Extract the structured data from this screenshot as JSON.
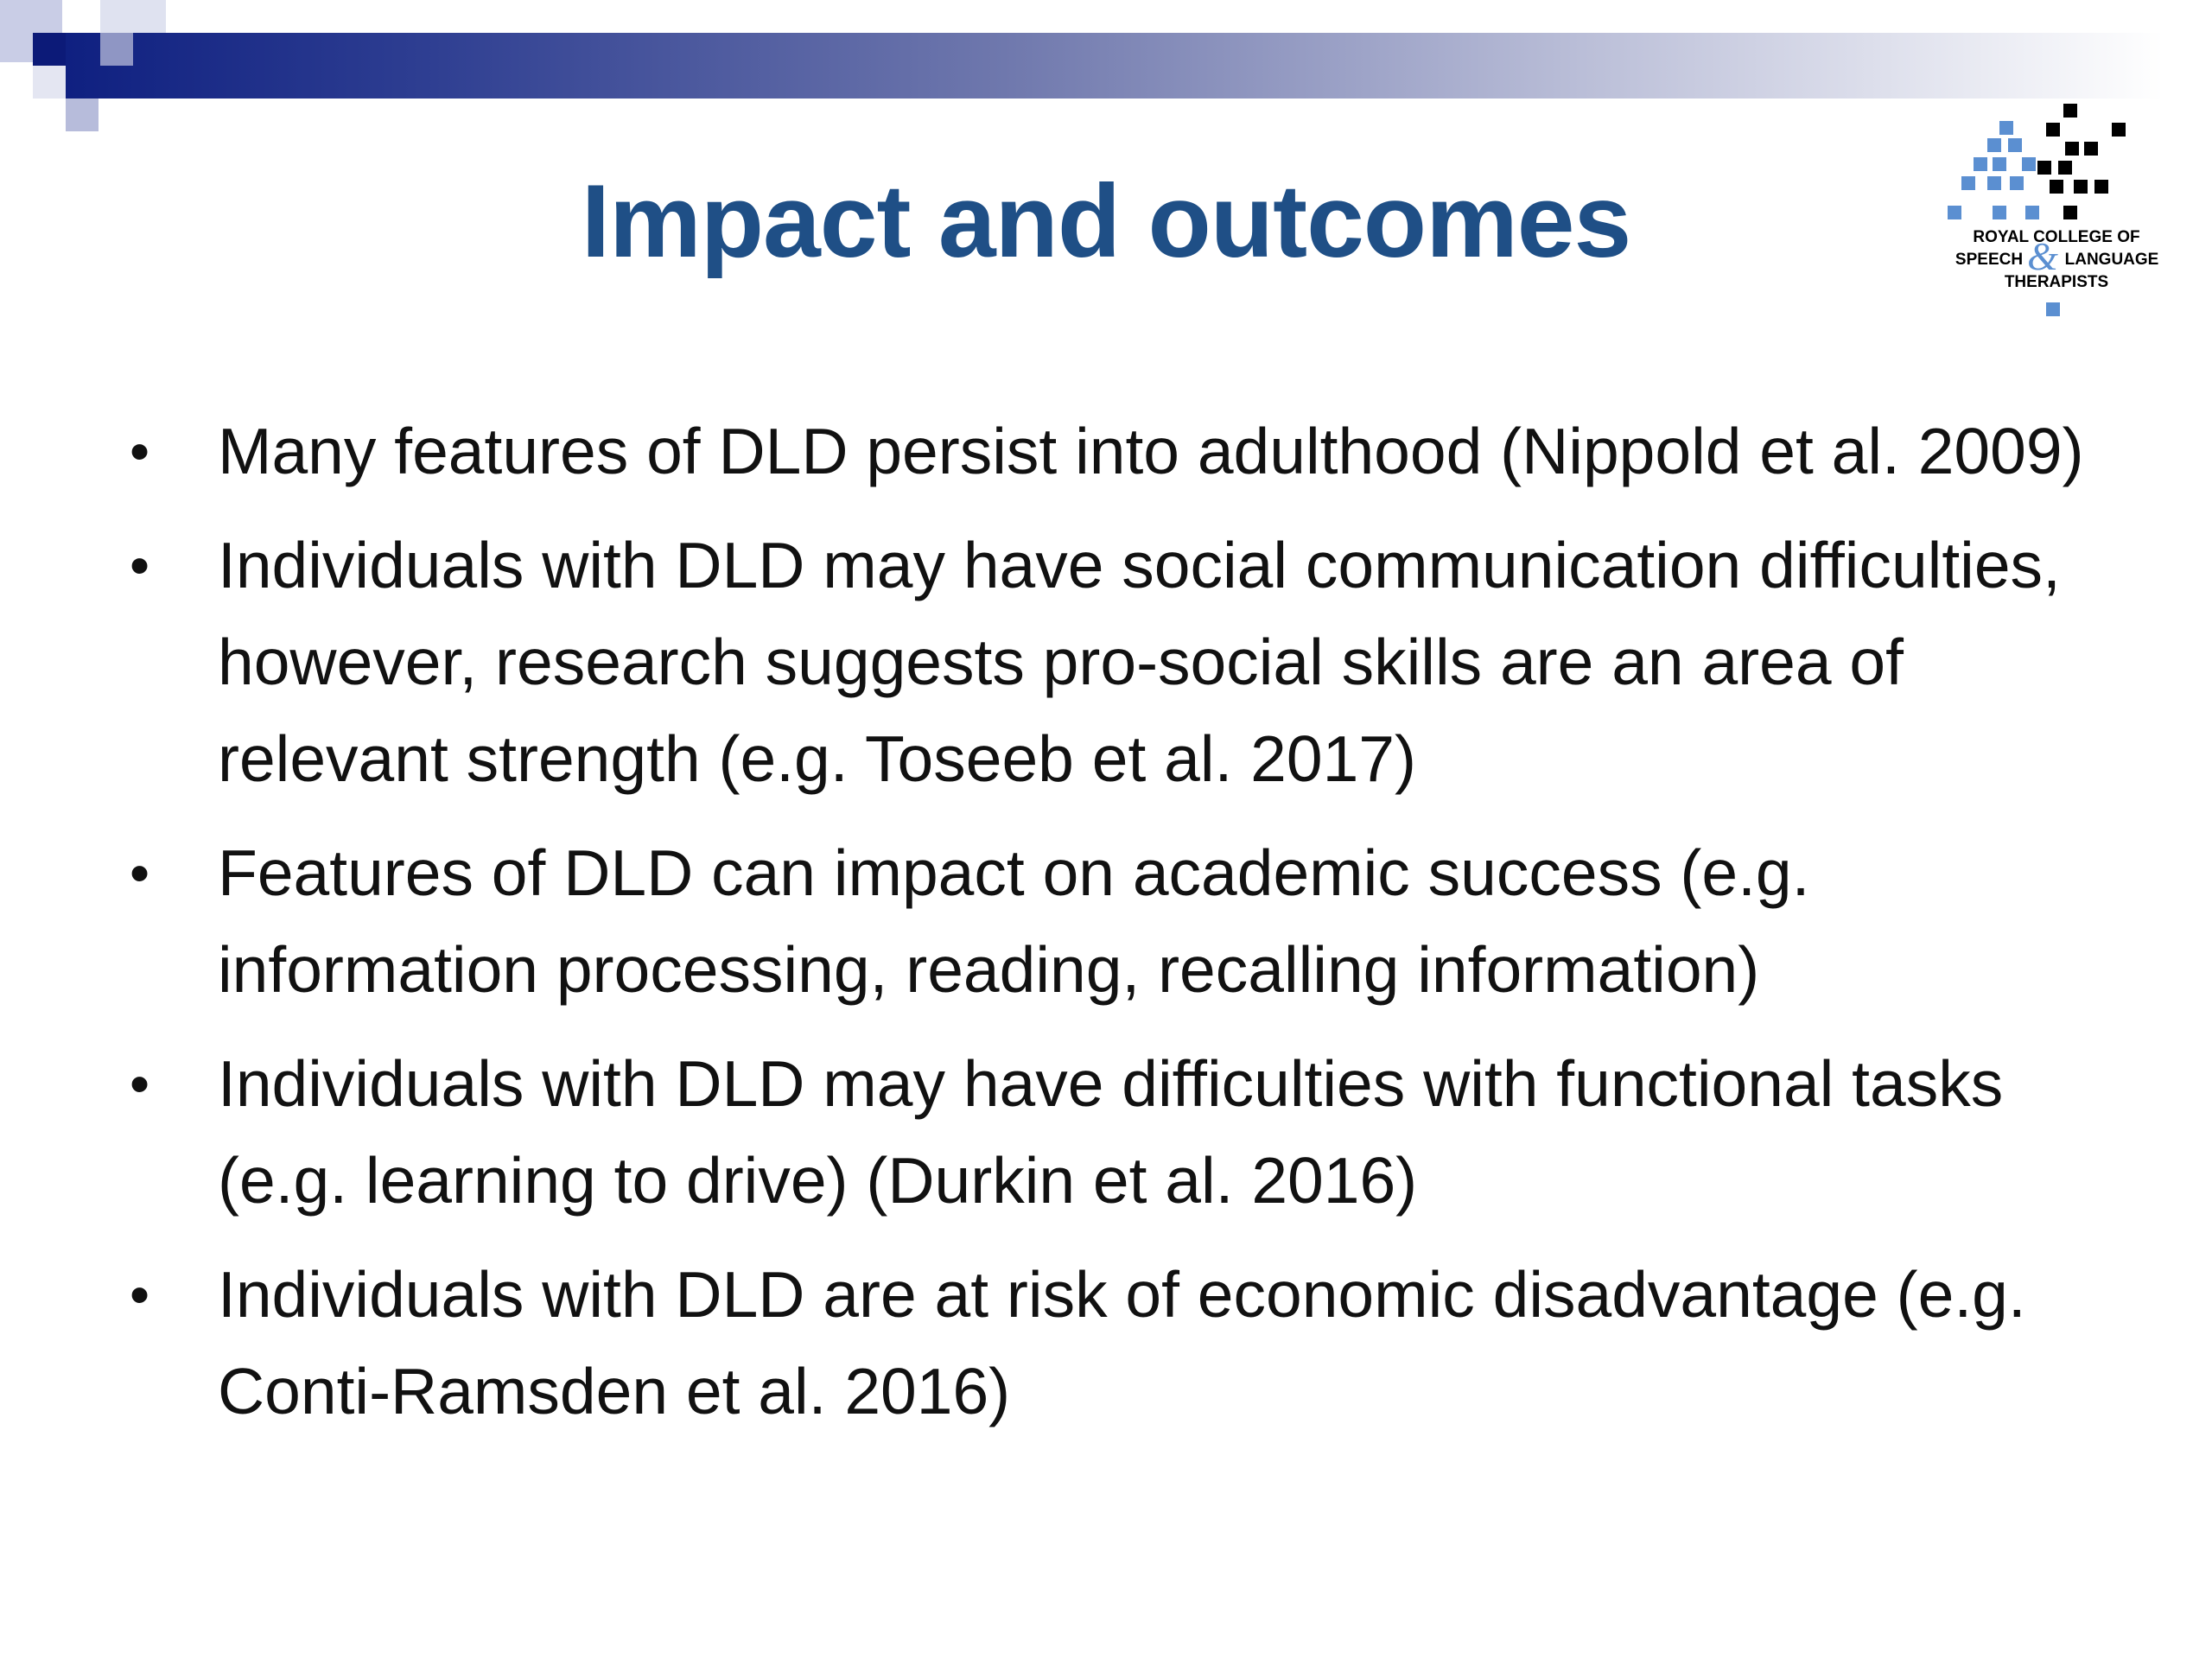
{
  "slide": {
    "title": "Impact and outcomes",
    "logo": {
      "line1": "ROYAL COLLEGE OF",
      "line2_left": "SPEECH",
      "ampersand": "&",
      "line2_right": "LANGUAGE",
      "line3": "THERAPISTS"
    },
    "bullet_symbol": "•",
    "bullets": [
      "Many features of DLD persist into adulthood (Nippold et al. 2009)",
      "Individuals with DLD may have social communication difficulties, however, research suggests pro-social skills are an area of relevant strength (e.g. Toseeb et al. 2017)",
      "Features of DLD can impact on academic success (e.g. information processing, reading, recalling information)",
      "Individuals with DLD may have difficulties with functional tasks (e.g. learning to drive) (Durkin et al. 2016)",
      "Individuals with DLD are at risk of economic disadvantage (e.g. Conti-Ramsden et al. 2016)"
    ]
  },
  "colors": {
    "title": "#1f4f86",
    "bar_start": "#0e1f80",
    "logo_blue": "#5b8fd1",
    "logo_black": "#000000",
    "text": "#111111"
  }
}
